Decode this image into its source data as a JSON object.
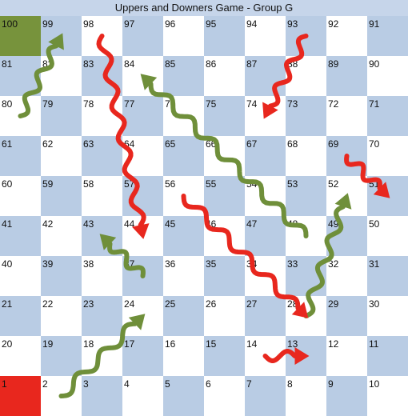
{
  "title": "Uppers and Downers Game  - Group G",
  "board": {
    "rows": [
      [
        100,
        99,
        98,
        97,
        96,
        95,
        94,
        93,
        92,
        91
      ],
      [
        81,
        82,
        83,
        84,
        85,
        86,
        87,
        88,
        89,
        90
      ],
      [
        80,
        79,
        78,
        77,
        76,
        75,
        74,
        73,
        72,
        71
      ],
      [
        61,
        62,
        63,
        64,
        65,
        66,
        67,
        68,
        69,
        70
      ],
      [
        60,
        59,
        58,
        57,
        56,
        55,
        54,
        53,
        52,
        51
      ],
      [
        41,
        42,
        43,
        44,
        45,
        46,
        47,
        48,
        49,
        50
      ],
      [
        40,
        39,
        38,
        37,
        36,
        35,
        34,
        33,
        32,
        31
      ],
      [
        21,
        22,
        23,
        24,
        25,
        26,
        27,
        28,
        29,
        30
      ],
      [
        20,
        19,
        18,
        17,
        16,
        15,
        14,
        13,
        12,
        11
      ],
      [
        1,
        2,
        3,
        4,
        5,
        6,
        7,
        8,
        9,
        10
      ]
    ],
    "colors": {
      "light": "#ffffff",
      "dark": "#b9cce4",
      "finish": "#77933c",
      "start": "#e8271e",
      "upper": "#6f8f3a",
      "downer": "#e8271e"
    },
    "finish_square": 100,
    "start_square": 1,
    "uppers": [
      {
        "from": 80,
        "to": 99
      },
      {
        "from": 48,
        "to": 84
      },
      {
        "from": 37,
        "to": 43
      },
      {
        "from": 2,
        "to": 24
      },
      {
        "from": 28,
        "to": 52
      }
    ],
    "downers": [
      {
        "from": 98,
        "to": 44
      },
      {
        "from": 93,
        "to": 74
      },
      {
        "from": 56,
        "to": 28
      },
      {
        "from": 69,
        "to": 51
      },
      {
        "from": 14,
        "to": 13
      }
    ]
  }
}
